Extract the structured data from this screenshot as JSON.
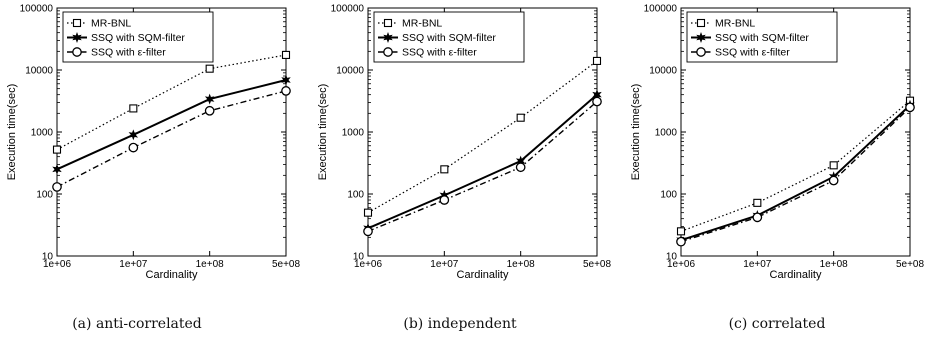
{
  "legend_entries": [
    "MR-BNL",
    "SSQ with SQM-filter",
    "SSQ with ε-filter"
  ],
  "chart_data": [
    {
      "type": "line",
      "caption": "(a) anti-correlated",
      "xlabel": "Cardinality",
      "ylabel": "Execution time(sec)",
      "categories": [
        "1e+06",
        "1e+07",
        "1e+08",
        "5e+08"
      ],
      "y_scale": "log",
      "ylim": [
        10,
        100000
      ],
      "y_ticks": [
        "10",
        "100",
        "1000",
        "10000",
        "100000"
      ],
      "legend_position": "top-left",
      "series": [
        {
          "name": "MR-BNL",
          "values": [
            520,
            2400,
            10500,
            17500
          ],
          "line": "dotted",
          "marker": "square"
        },
        {
          "name": "SSQ with SQM-filter",
          "values": [
            250,
            900,
            3400,
            6900
          ],
          "line": "solid",
          "marker": "star"
        },
        {
          "name": "SSQ with ε-filter",
          "values": [
            130,
            560,
            2200,
            4600
          ],
          "line": "dashdot",
          "marker": "circle"
        }
      ]
    },
    {
      "type": "line",
      "caption": "(b) independent",
      "xlabel": "Cardinality",
      "ylabel": "Execution time(sec)",
      "categories": [
        "1e+06",
        "1e+07",
        "1e+08",
        "5e+08"
      ],
      "y_scale": "log",
      "ylim": [
        10,
        100000
      ],
      "y_ticks": [
        "10",
        "100",
        "1000",
        "10000",
        "100000"
      ],
      "legend_position": "top-left",
      "series": [
        {
          "name": "MR-BNL",
          "values": [
            50,
            250,
            1700,
            14000
          ],
          "line": "dotted",
          "marker": "square"
        },
        {
          "name": "SSQ with SQM-filter",
          "values": [
            28,
            95,
            340,
            4000
          ],
          "line": "solid",
          "marker": "star"
        },
        {
          "name": "SSQ with ε-filter",
          "values": [
            25,
            80,
            270,
            3100
          ],
          "line": "dashdot",
          "marker": "circle"
        }
      ]
    },
    {
      "type": "line",
      "caption": "(c) correlated",
      "xlabel": "Cardinality",
      "ylabel": "Execution time(sec)",
      "categories": [
        "1e+06",
        "1e+07",
        "1e+08",
        "5e+08"
      ],
      "y_scale": "log",
      "ylim": [
        10,
        100000
      ],
      "y_ticks": [
        "10",
        "100",
        "1000",
        "10000",
        "100000"
      ],
      "legend_position": "top-left",
      "series": [
        {
          "name": "MR-BNL",
          "values": [
            25,
            72,
            290,
            3200
          ],
          "line": "dotted",
          "marker": "square"
        },
        {
          "name": "SSQ with SQM-filter",
          "values": [
            18,
            45,
            190,
            2700
          ],
          "line": "solid",
          "marker": "star"
        },
        {
          "name": "SSQ with ε-filter",
          "values": [
            17,
            42,
            165,
            2500
          ],
          "line": "dashdot",
          "marker": "circle"
        }
      ]
    }
  ]
}
